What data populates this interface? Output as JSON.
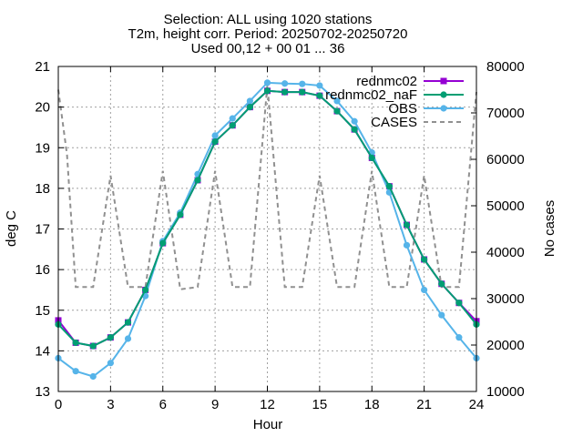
{
  "chart_data": {
    "type": "line",
    "title_lines": [
      "Selection: ALL using  1020 stations",
      "T2m, height corr.   Period: 20250702-20250720",
      "Used 00,12 + 00 01 ... 36"
    ],
    "xlabel": "Hour",
    "ylabel": "deg C",
    "y2label": "No cases",
    "xlim": [
      0,
      24
    ],
    "ylim": [
      13,
      21
    ],
    "y2lim": [
      10000,
      80000
    ],
    "x_ticks": [
      0,
      3,
      6,
      9,
      12,
      15,
      18,
      21,
      24
    ],
    "y_ticks": [
      13,
      14,
      15,
      16,
      17,
      18,
      19,
      20,
      21
    ],
    "y2_ticks": [
      10000,
      20000,
      30000,
      40000,
      50000,
      60000,
      70000,
      80000
    ],
    "grid": true,
    "legend_position": "top-right",
    "x": [
      0,
      1,
      2,
      3,
      4,
      5,
      6,
      7,
      8,
      9,
      10,
      11,
      12,
      13,
      14,
      15,
      16,
      17,
      18,
      19,
      20,
      21,
      22,
      23,
      24
    ],
    "series": [
      {
        "name": "rednmc02",
        "axis": "y1",
        "color": "#9400d3",
        "marker": "filled-square",
        "values": [
          14.75,
          14.2,
          14.12,
          14.33,
          14.7,
          15.5,
          16.65,
          17.35,
          18.2,
          19.15,
          19.55,
          20.0,
          20.4,
          20.37,
          20.37,
          20.28,
          19.9,
          19.45,
          18.75,
          18.05,
          17.1,
          16.25,
          15.65,
          15.18,
          14.73
        ]
      },
      {
        "name": "rednmc02_naF",
        "axis": "y1",
        "color": "#009e73",
        "marker": "filled-circle",
        "values": [
          14.65,
          14.2,
          14.12,
          14.33,
          14.7,
          15.5,
          16.65,
          17.35,
          18.2,
          19.15,
          19.55,
          20.0,
          20.4,
          20.37,
          20.37,
          20.28,
          19.9,
          19.45,
          18.75,
          18.05,
          17.1,
          16.25,
          15.65,
          15.18,
          14.65
        ]
      },
      {
        "name": "OBS",
        "axis": "y1",
        "color": "#56b4e9",
        "marker": "filled-circle",
        "values": [
          13.82,
          13.5,
          13.37,
          13.7,
          14.3,
          15.35,
          16.7,
          17.4,
          18.35,
          19.3,
          19.72,
          20.15,
          20.6,
          20.58,
          20.57,
          20.53,
          20.15,
          19.65,
          18.88,
          17.9,
          16.6,
          15.5,
          14.88,
          14.33,
          13.82
        ]
      },
      {
        "name": "CASES",
        "axis": "y2",
        "color": "#909090",
        "dash": "dashed",
        "x": [
          0,
          0.5,
          1,
          2,
          3,
          4,
          5,
          6,
          7,
          8,
          9,
          10,
          11,
          12,
          13,
          14,
          15,
          16,
          17,
          18,
          19,
          20,
          21,
          22,
          23,
          24
        ],
        "values": [
          75000,
          61000,
          32500,
          32500,
          56500,
          32500,
          32500,
          57500,
          32000,
          32500,
          57500,
          32500,
          32500,
          76000,
          32500,
          32500,
          56500,
          32500,
          32500,
          57500,
          32500,
          32500,
          56500,
          32500,
          32500,
          74500
        ]
      }
    ]
  }
}
